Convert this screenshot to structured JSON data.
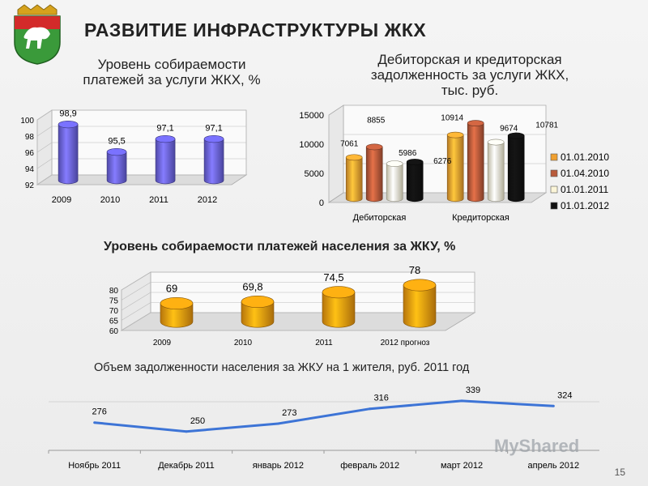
{
  "header": {
    "title": "РАЗВИТИЕ ИНФРАСТРУКТУРЫ ЖКХ",
    "slide_number": "15",
    "watermark": "MyShared"
  },
  "colors": {
    "cylinder_blue": "#6a63e0",
    "cylinder_orange": "#f29a10",
    "line_blue": "#3d74d6",
    "bar_2010": "#f0a030",
    "bar_2010b": "#b85a3a",
    "bar_2011": "#fbf5d8",
    "bar_2012": "#111111"
  },
  "chart_data": [
    {
      "id": "collection_rate",
      "type": "bar",
      "title_lines": [
        "Уровень собираемости",
        "платежей за услуги ЖКХ, %"
      ],
      "categories": [
        "2009",
        "2010",
        "2011",
        "2012"
      ],
      "values": [
        98.9,
        95.5,
        97.1,
        97.1
      ],
      "value_labels": [
        "98,9",
        "95,5",
        "97,1",
        "97,1"
      ],
      "y_ticks": [
        "92",
        "94",
        "96",
        "98",
        "100"
      ],
      "ylim": [
        92,
        100
      ]
    },
    {
      "id": "debts",
      "type": "bar",
      "title_lines": [
        "Дебиторская и кредиторская",
        "задолженность за услуги ЖКХ,",
        "тыс. руб."
      ],
      "categories": [
        "Дебиторская",
        "Кредиторская"
      ],
      "series": [
        {
          "name": "01.01.2010",
          "values": [
            7061,
            10914
          ]
        },
        {
          "name": "01.04.2010",
          "values": [
            8855,
            12928
          ]
        },
        {
          "name": "01.01.2011",
          "values": [
            5986,
            9674
          ]
        },
        {
          "name": "01.01.2012",
          "values": [
            6276,
            10781
          ]
        }
      ],
      "y_ticks": [
        "0",
        "5000",
        "10000",
        "15000"
      ],
      "ylim": [
        0,
        15000
      ],
      "legend": "right"
    },
    {
      "id": "population_rate",
      "type": "bar",
      "title": "Уровень собираемости платежей населения за ЖКУ, %",
      "categories": [
        "2009",
        "2010",
        "2011",
        "2012 прогноз"
      ],
      "values": [
        69,
        69.8,
        74.5,
        78
      ],
      "value_labels": [
        "69",
        "69,8",
        "74,5",
        "78"
      ],
      "y_ticks": [
        "60",
        "65",
        "70",
        "75",
        "80"
      ],
      "ylim": [
        60,
        80
      ]
    },
    {
      "id": "debt_per_resident",
      "type": "line",
      "title": "Объем задолженности населения за ЖКУ на 1 жителя, руб. 2011 год",
      "categories": [
        "Ноябрь 2011",
        "Декабрь 2011",
        "январь 2012",
        "февраль 2012",
        "март 2012",
        "апрель 2012"
      ],
      "values": [
        276,
        250,
        273,
        316,
        339,
        324
      ],
      "value_labels": [
        "276",
        "250",
        "273",
        "316",
        "339",
        "324"
      ]
    }
  ]
}
